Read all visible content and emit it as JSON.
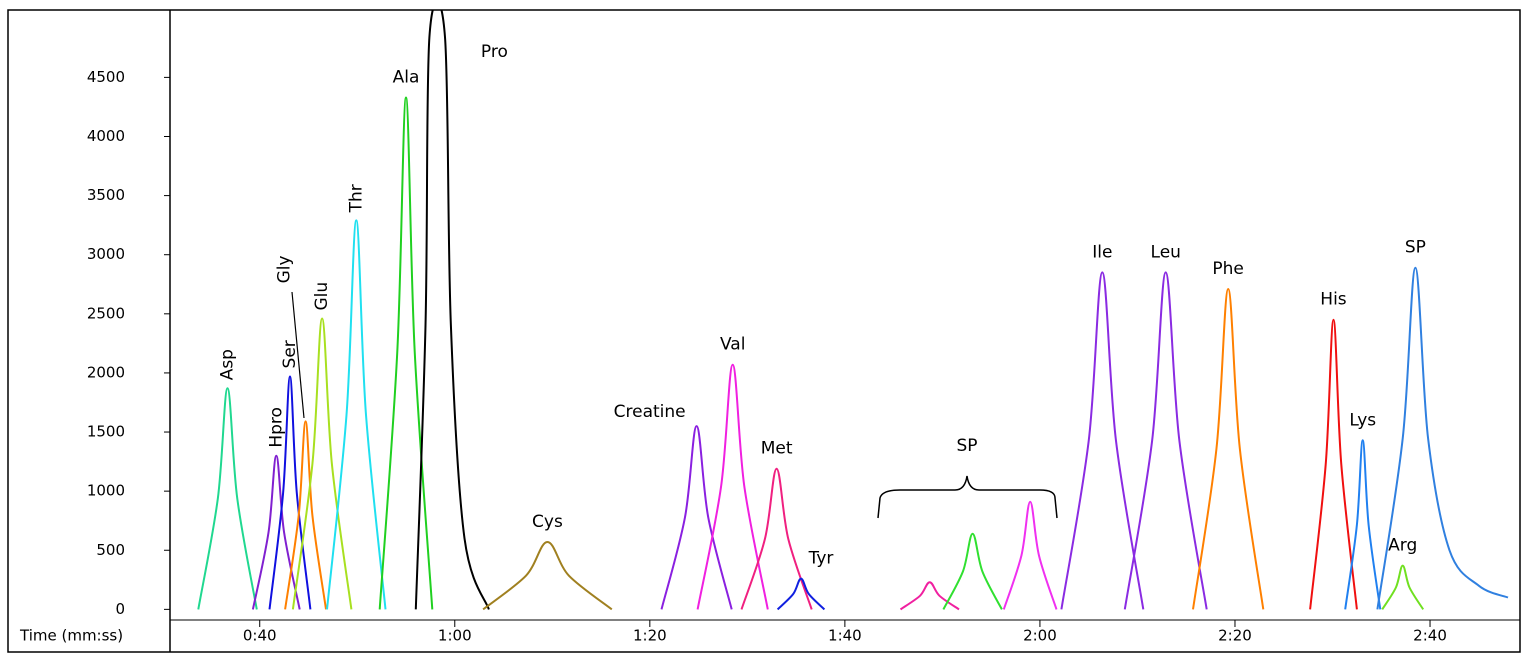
{
  "chart_data": {
    "type": "line",
    "x_label": "Time (mm:ss)",
    "xlim": [
      30.8,
      168.2
    ],
    "xticks": [
      {
        "value": 40,
        "label": "0:40"
      },
      {
        "value": 60,
        "label": "1:00"
      },
      {
        "value": 80,
        "label": "1:20"
      },
      {
        "value": 100,
        "label": "1:40"
      },
      {
        "value": 120,
        "label": "2:00"
      },
      {
        "value": 140,
        "label": "2:20"
      },
      {
        "value": 160,
        "label": "2:40"
      }
    ],
    "ylim": [
      -90,
      5070
    ],
    "yticks": [
      0,
      500,
      1000,
      1500,
      2000,
      2500,
      3000,
      3500,
      4000,
      4500
    ],
    "annotations": [
      {
        "text": "SP"
      }
    ],
    "series": [
      {
        "name": "Asp",
        "color": "#20d890",
        "label_orientation": "vertical",
        "x": [
          33.7,
          35.7,
          36.7,
          37.7,
          39.7
        ],
        "values": [
          0,
          935,
          1870,
          935,
          0
        ]
      },
      {
        "name": "Hpro",
        "color": "#8020d0",
        "label_orientation": "vertical",
        "x": [
          39.3,
          40.9,
          41.7,
          42.5,
          44.1
        ],
        "values": [
          0,
          650,
          1300,
          650,
          0
        ]
      },
      {
        "name": "Ser",
        "color": "#1010e0",
        "label_orientation": "vertical",
        "x": [
          41.0,
          42.4,
          43.1,
          43.8,
          45.2
        ],
        "values": [
          0,
          985,
          1970,
          985,
          0
        ]
      },
      {
        "name": "Gly",
        "color": "#ff8000",
        "label_orientation": "vertical",
        "x": [
          42.6,
          44.0,
          44.7,
          45.4,
          46.8
        ],
        "values": [
          0,
          795,
          1590,
          795,
          0
        ]
      },
      {
        "name": "Glu",
        "color": "#a8e020",
        "label_orientation": "vertical",
        "x": [
          43.4,
          45.4,
          46.4,
          47.4,
          49.4
        ],
        "values": [
          0,
          1230,
          2460,
          1230,
          0
        ]
      },
      {
        "name": "Thr",
        "color": "#20e0f0",
        "label_orientation": "vertical",
        "x": [
          46.9,
          48.9,
          49.9,
          50.9,
          52.9
        ],
        "values": [
          0,
          1645,
          3290,
          1645,
          0
        ]
      },
      {
        "name": "Ala",
        "color": "#20d020",
        "x": [
          52.3,
          54.1,
          55.0,
          55.9,
          57.7
        ],
        "values": [
          0,
          2165,
          4330,
          2165,
          0
        ]
      },
      {
        "name": "Pro",
        "color": "#000000",
        "x": [
          56.0,
          57.0,
          57.4,
          59.0,
          59.6,
          61.0,
          63.5
        ],
        "values": [
          0,
          2400,
          4840,
          4840,
          2400,
          600,
          0
        ]
      },
      {
        "name": "Cys",
        "color": "#a08020",
        "x": [
          62.9,
          67.3,
          69.5,
          71.7,
          76.1
        ],
        "values": [
          0,
          285,
          570,
          285,
          0
        ]
      },
      {
        "name": "Creatine",
        "color": "#8a20e0",
        "x": [
          81.2,
          83.6,
          84.8,
          86.0,
          88.4
        ],
        "values": [
          0,
          775,
          1550,
          775,
          0
        ]
      },
      {
        "name": "Val",
        "color": "#f020e0",
        "x": [
          84.9,
          87.3,
          88.5,
          89.7,
          92.1
        ],
        "values": [
          0,
          1035,
          2070,
          1035,
          0
        ]
      },
      {
        "name": "Met",
        "color": "#f02080",
        "x": [
          89.4,
          91.8,
          93.0,
          94.2,
          96.6
        ],
        "values": [
          0,
          595,
          1190,
          595,
          0
        ]
      },
      {
        "name": "Tyr",
        "color": "#1020e0",
        "x": [
          93.1,
          94.7,
          95.5,
          96.3,
          97.9
        ],
        "values": [
          0,
          130,
          260,
          130,
          0
        ]
      },
      {
        "color": "#f020a0",
        "x": [
          105.7,
          107.7,
          108.7,
          109.7,
          111.7
        ],
        "values": [
          0,
          115,
          230,
          115,
          0
        ]
      },
      {
        "color": "#30e030",
        "x": [
          110.1,
          112.1,
          113.1,
          114.1,
          116.1
        ],
        "values": [
          0,
          320,
          640,
          320,
          0
        ]
      },
      {
        "color": "#f030f0",
        "x": [
          116.3,
          118.1,
          119.0,
          119.9,
          121.7
        ],
        "values": [
          0,
          455,
          910,
          455,
          0
        ]
      },
      {
        "name": "Ile",
        "color": "#8a2be2",
        "x": [
          122.2,
          125.0,
          126.4,
          127.8,
          130.6
        ],
        "values": [
          0,
          1425,
          2850,
          1425,
          0
        ]
      },
      {
        "name": "Leu",
        "color": "#8a2be2",
        "x": [
          128.7,
          131.5,
          132.9,
          134.3,
          137.1
        ],
        "values": [
          0,
          1425,
          2850,
          1425,
          0
        ]
      },
      {
        "name": "Phe",
        "color": "#ff8000",
        "x": [
          135.7,
          138.1,
          139.3,
          140.5,
          142.9
        ],
        "values": [
          0,
          1355,
          2710,
          1355,
          0
        ]
      },
      {
        "name": "His",
        "color": "#f01010",
        "x": [
          147.7,
          149.3,
          150.1,
          150.9,
          152.5
        ],
        "values": [
          0,
          1225,
          2450,
          1225,
          0
        ]
      },
      {
        "name": "Lys",
        "color": "#2080f0",
        "x": [
          151.3,
          152.5,
          153.1,
          153.7,
          154.9
        ],
        "values": [
          0,
          715,
          1430,
          715,
          0
        ]
      },
      {
        "name": "Arg",
        "color": "#70e020",
        "x": [
          155.1,
          156.5,
          157.2,
          157.9,
          159.3
        ],
        "values": [
          0,
          185,
          370,
          185,
          0
        ]
      },
      {
        "name": "SP",
        "color": "#3080e0",
        "x": [
          154.6,
          157.2,
          158.5,
          159.8,
          162.0,
          165.0,
          168.0
        ],
        "values": [
          0,
          1445,
          2890,
          1445,
          500,
          200,
          100
        ]
      }
    ]
  }
}
